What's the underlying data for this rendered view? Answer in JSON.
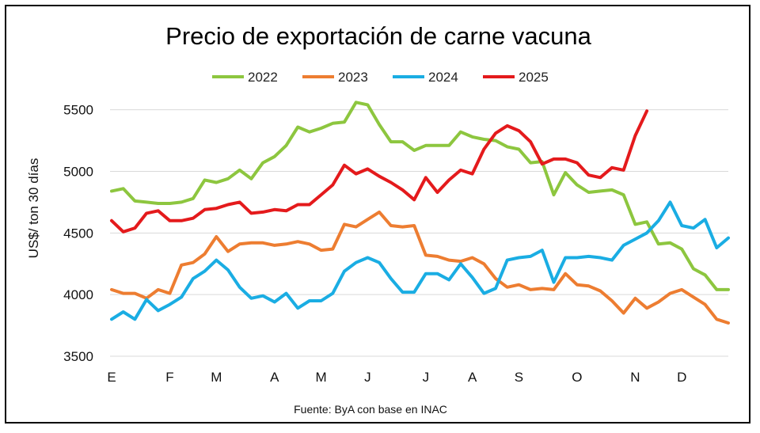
{
  "chart_data": {
    "type": "line",
    "title": "Precio de exportación de carne vacuna",
    "ylabel": "US$/ ton 30 días",
    "xlabel": "",
    "source": "Fuente: ByA con base en INAC",
    "ylim": [
      3500,
      5700
    ],
    "yticks": [
      3500,
      4000,
      4500,
      5000,
      5500
    ],
    "grid": true,
    "legend_position": "top",
    "x_weeks": 53,
    "month_ticks": [
      {
        "label": "E",
        "week": 0
      },
      {
        "label": "F",
        "week": 5
      },
      {
        "label": "M",
        "week": 9
      },
      {
        "label": "A",
        "week": 14
      },
      {
        "label": "M",
        "week": 18
      },
      {
        "label": "J",
        "week": 22
      },
      {
        "label": "J",
        "week": 27
      },
      {
        "label": "A",
        "week": 31
      },
      {
        "label": "S",
        "week": 35
      },
      {
        "label": "O",
        "week": 40
      },
      {
        "label": "N",
        "week": 45
      },
      {
        "label": "D",
        "week": 49
      }
    ],
    "series": [
      {
        "name": "2022",
        "color": "#8DC63F",
        "values": [
          4840,
          4860,
          4760,
          4750,
          4740,
          4740,
          4750,
          4780,
          4930,
          4910,
          4940,
          5010,
          4940,
          5070,
          5120,
          5210,
          5360,
          5320,
          5350,
          5390,
          5400,
          5560,
          5540,
          5380,
          5240,
          5240,
          5170,
          5210,
          5210,
          5210,
          5320,
          5280,
          5260,
          5250,
          5200,
          5180,
          5070,
          5080,
          4810,
          4990,
          4890,
          4830,
          4840,
          4850,
          4810,
          4570,
          4590,
          4410,
          4420,
          4370,
          4210,
          4160,
          4040,
          4040
        ]
      },
      {
        "name": "2023",
        "color": "#ED7D31",
        "values": [
          4040,
          4010,
          4010,
          3970,
          4040,
          4010,
          4240,
          4260,
          4330,
          4470,
          4350,
          4410,
          4420,
          4420,
          4400,
          4410,
          4430,
          4410,
          4360,
          4370,
          4570,
          4550,
          4610,
          4670,
          4560,
          4550,
          4560,
          4320,
          4310,
          4280,
          4270,
          4300,
          4250,
          4130,
          4060,
          4080,
          4040,
          4050,
          4040,
          4170,
          4080,
          4070,
          4030,
          3950,
          3850,
          3970,
          3890,
          3940,
          4010,
          4040,
          3980,
          3920,
          3800,
          3770
        ]
      },
      {
        "name": "2024",
        "color": "#1AADE3",
        "values": [
          3800,
          3860,
          3800,
          3960,
          3870,
          3920,
          3980,
          4130,
          4190,
          4280,
          4200,
          4060,
          3970,
          3990,
          3940,
          4010,
          3890,
          3950,
          3950,
          4010,
          4190,
          4260,
          4300,
          4260,
          4130,
          4020,
          4020,
          4170,
          4170,
          4120,
          4250,
          4140,
          4010,
          4050,
          4280,
          4300,
          4310,
          4360,
          4100,
          4300,
          4300,
          4310,
          4300,
          4280,
          4400,
          4450,
          4500,
          4600,
          4750,
          4560,
          4540,
          4610,
          4380,
          4460
        ]
      },
      {
        "name": "2025",
        "color": "#E41A1C",
        "values": [
          4600,
          4510,
          4540,
          4660,
          4680,
          4600,
          4600,
          4620,
          4690,
          4700,
          4730,
          4750,
          4660,
          4670,
          4690,
          4680,
          4730,
          4730,
          4810,
          4890,
          5050,
          4980,
          5020,
          4960,
          4910,
          4850,
          4770,
          4950,
          4830,
          4930,
          5010,
          4980,
          5180,
          5310,
          5370,
          5330,
          5240,
          5060,
          5100,
          5100,
          5070,
          4970,
          4950,
          5030,
          5010,
          5290,
          5490
        ]
      }
    ]
  }
}
